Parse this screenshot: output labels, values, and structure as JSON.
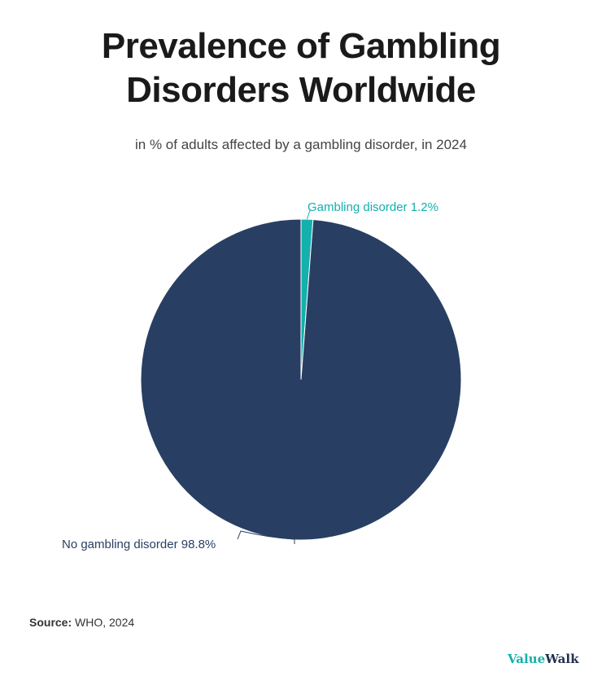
{
  "title_line1": "Prevalence of Gambling",
  "title_line2": "Disorders Worldwide",
  "subtitle": "in % of adults affected by a gambling disorder, in 2024",
  "chart_data": {
    "type": "pie",
    "title": "Prevalence of Gambling Disorders Worldwide",
    "subtitle": "in % of adults affected by a gambling disorder, in 2024",
    "slices": [
      {
        "label": "Gambling disorder",
        "value": 1.2,
        "display": "Gambling disorder 1.2%",
        "color": "#13b0ad"
      },
      {
        "label": "No gambling disorder",
        "value": 98.8,
        "display": "No gambling disorder 98.8%",
        "color": "#283f63"
      }
    ],
    "start_angle": "top, clockwise"
  },
  "source_label": "Source:",
  "source_value": "WHO, 2024",
  "logo": {
    "part1": "Value",
    "part2": "Walk"
  }
}
